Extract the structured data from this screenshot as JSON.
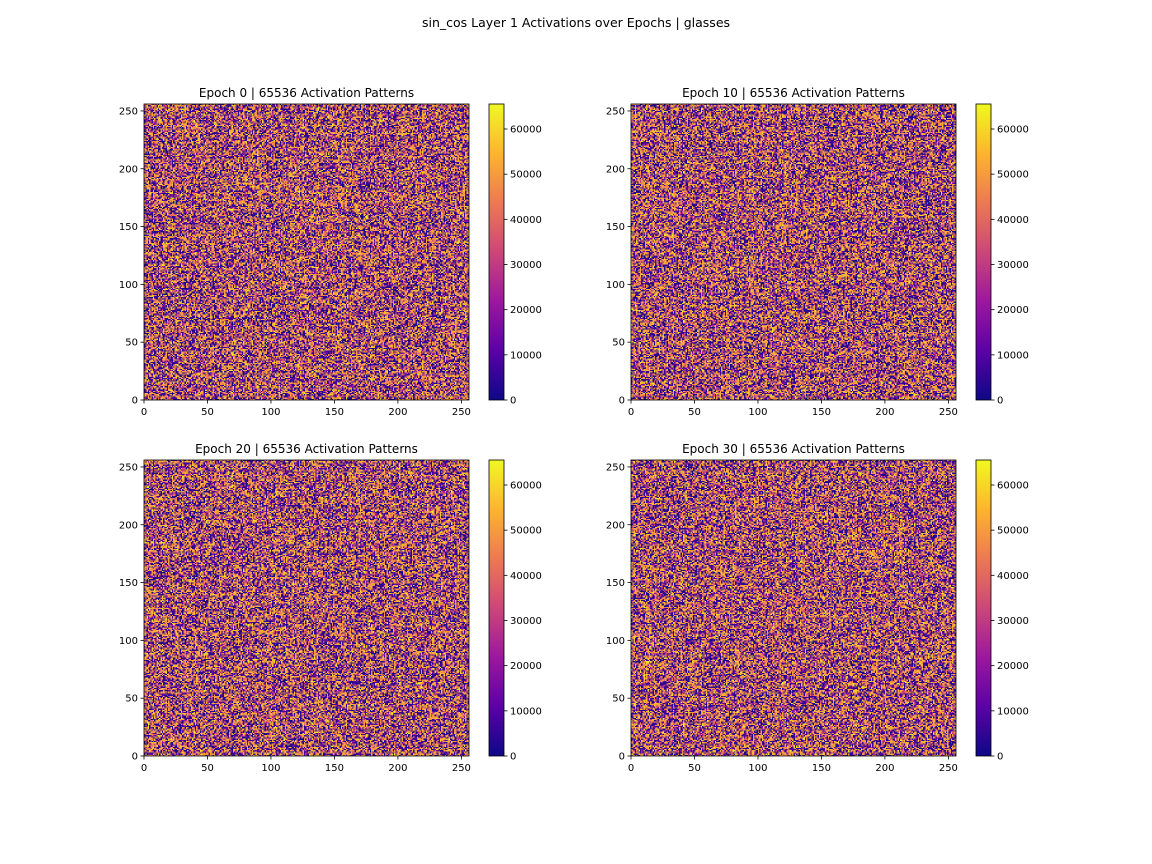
{
  "suptitle": "sin_cos Layer 1 Activations over Epochs | glasses",
  "colormap": [
    "#0d0887",
    "#5c01a6",
    "#9c179e",
    "#cc4778",
    "#ed7953",
    "#fdb42f",
    "#f0f921"
  ],
  "chart_data": [
    {
      "type": "heatmap",
      "title": "Epoch 0 | 65536 Activation Patterns",
      "xlim": [
        0,
        256
      ],
      "ylim": [
        0,
        256
      ],
      "x_ticks": [
        0,
        50,
        100,
        150,
        200,
        250
      ],
      "y_ticks": [
        0,
        50,
        100,
        150,
        200,
        250
      ],
      "grid_size": [
        256,
        256
      ],
      "value_range": [
        0,
        65536
      ],
      "colorbar_ticks": [
        0,
        10000,
        20000,
        30000,
        40000,
        50000,
        60000
      ],
      "colorbar_labels": [
        "0",
        "10000",
        "20000",
        "30000",
        "40000",
        "50000",
        "60000"
      ],
      "distribution": "uniform random noise across full range"
    },
    {
      "type": "heatmap",
      "title": "Epoch 10 | 65536 Activation Patterns",
      "xlim": [
        0,
        256
      ],
      "ylim": [
        0,
        256
      ],
      "x_ticks": [
        0,
        50,
        100,
        150,
        200,
        250
      ],
      "y_ticks": [
        0,
        50,
        100,
        150,
        200,
        250
      ],
      "grid_size": [
        256,
        256
      ],
      "value_range": [
        0,
        65536
      ],
      "colorbar_ticks": [
        0,
        10000,
        20000,
        30000,
        40000,
        50000,
        60000
      ],
      "colorbar_labels": [
        "0",
        "10000",
        "20000",
        "30000",
        "40000",
        "50000",
        "60000"
      ],
      "distribution": "uniform random noise across full range"
    },
    {
      "type": "heatmap",
      "title": "Epoch 20 | 65536 Activation Patterns",
      "xlim": [
        0,
        256
      ],
      "ylim": [
        0,
        256
      ],
      "x_ticks": [
        0,
        50,
        100,
        150,
        200,
        250
      ],
      "y_ticks": [
        0,
        50,
        100,
        150,
        200,
        250
      ],
      "grid_size": [
        256,
        256
      ],
      "value_range": [
        0,
        65536
      ],
      "colorbar_ticks": [
        0,
        10000,
        20000,
        30000,
        40000,
        50000,
        60000
      ],
      "colorbar_labels": [
        "0",
        "10000",
        "20000",
        "30000",
        "40000",
        "50000",
        "60000"
      ],
      "distribution": "uniform random noise across full range"
    },
    {
      "type": "heatmap",
      "title": "Epoch 30 | 65536 Activation Patterns",
      "xlim": [
        0,
        256
      ],
      "ylim": [
        0,
        256
      ],
      "x_ticks": [
        0,
        50,
        100,
        150,
        200,
        250
      ],
      "y_ticks": [
        0,
        50,
        100,
        150,
        200,
        250
      ],
      "grid_size": [
        256,
        256
      ],
      "value_range": [
        0,
        65536
      ],
      "colorbar_ticks": [
        0,
        10000,
        20000,
        30000,
        40000,
        50000,
        60000
      ],
      "colorbar_labels": [
        "0",
        "10000",
        "20000",
        "30000",
        "40000",
        "50000",
        "60000"
      ],
      "distribution": "uniform random noise across full range"
    }
  ]
}
